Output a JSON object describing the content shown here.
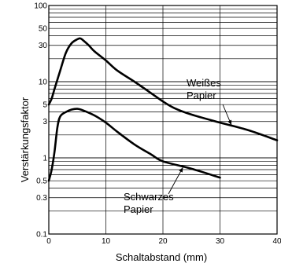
{
  "chart_data": {
    "type": "line",
    "xlabel": "Schaltabstand (mm)",
    "ylabel": "Verstärkungsfaktor",
    "xlim": [
      0,
      40
    ],
    "ylim": [
      0.1,
      100
    ],
    "yscale": "log",
    "grid": true,
    "x_ticks": [
      0,
      10,
      20,
      30,
      40
    ],
    "x_tick_labels": [
      "0",
      "10",
      "20",
      "30",
      "40"
    ],
    "y_ticks": [
      0.1,
      0.3,
      0.5,
      1,
      3,
      5,
      10,
      30,
      50,
      100
    ],
    "y_tick_labels": [
      "0.1",
      "0.3",
      "0.5",
      "1",
      "3",
      "5",
      "10",
      "30",
      "50",
      "100"
    ],
    "series": [
      {
        "name": "Weißes Papier",
        "x": [
          0,
          0.5,
          1,
          2,
          3,
          4,
          5,
          5.5,
          6,
          7,
          8,
          10,
          12,
          15,
          18,
          20,
          22,
          25,
          30,
          35,
          40
        ],
        "y": [
          5,
          6,
          8,
          14,
          24,
          32,
          36,
          37,
          35,
          30,
          25,
          19,
          14,
          10,
          7,
          5.5,
          4.5,
          3.7,
          2.9,
          2.3,
          1.7
        ]
      },
      {
        "name": "Schwarzes Papier",
        "x": [
          0,
          0.5,
          1,
          1.5,
          2,
          3,
          4,
          5,
          6,
          8,
          10,
          12,
          15,
          18,
          20,
          25,
          30
        ],
        "y": [
          0.5,
          0.7,
          1.2,
          2.5,
          3.5,
          4.0,
          4.3,
          4.4,
          4.2,
          3.6,
          2.9,
          2.2,
          1.5,
          1.1,
          0.9,
          0.72,
          0.55
        ]
      }
    ],
    "annotations": [
      {
        "lines": [
          "Weißes",
          "Papier"
        ],
        "arrow_to": [
          32,
          2.7
        ]
      },
      {
        "lines": [
          "Schwarzes",
          "Papier"
        ],
        "arrow_to": [
          23.5,
          0.75
        ]
      }
    ]
  }
}
